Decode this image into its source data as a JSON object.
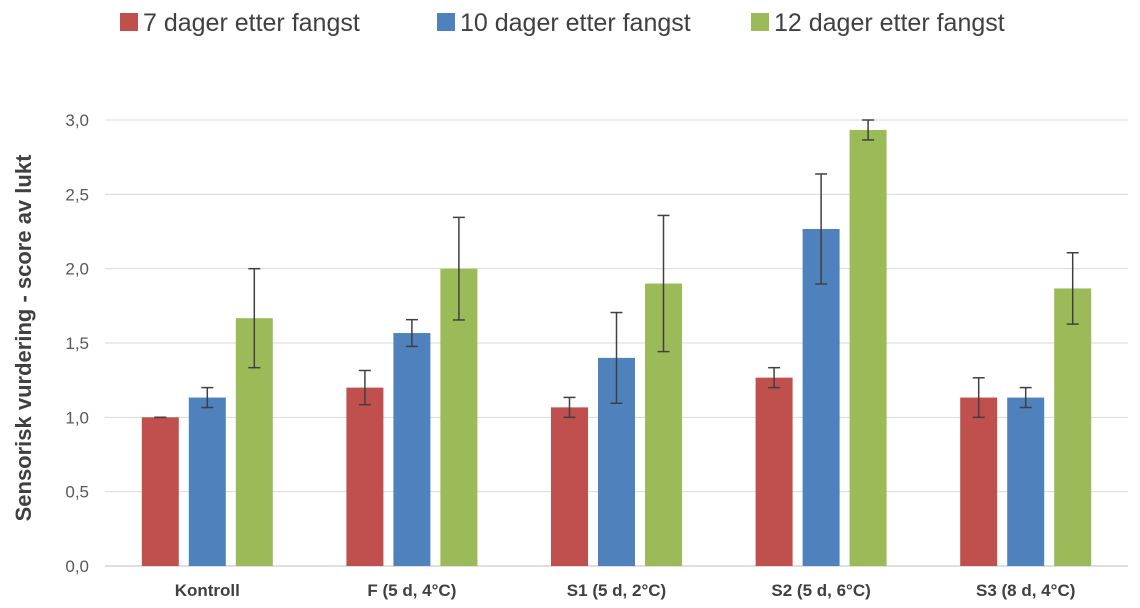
{
  "chart_data": {
    "type": "bar",
    "title": "",
    "xlabel": "",
    "ylabel": "Sensorisk vurdering - score av lukt",
    "ylim": [
      0,
      3.0
    ],
    "yticks": [
      "0,0",
      "0,5",
      "1,0",
      "1,5",
      "2,0",
      "2,5",
      "3,0"
    ],
    "ytick_values": [
      0,
      0.5,
      1.0,
      1.5,
      2.0,
      2.5,
      3.0
    ],
    "grid": true,
    "legend_position": "top",
    "categories": [
      "Kontroll",
      "F (5 d, 4°C)",
      "S1 (5 d, 2°C)",
      "S2 (5 d, 6°C)",
      "S3 (8 d, 4°C)"
    ],
    "series": [
      {
        "name": "7 dager etter fangst",
        "color": "#c0504d",
        "values": [
          1.0,
          1.2,
          1.067,
          1.267,
          1.133
        ],
        "errors": [
          0.0,
          0.115,
          0.067,
          0.067,
          0.133
        ]
      },
      {
        "name": "10 dager etter fangst",
        "color": "#4f81bd",
        "values": [
          1.133,
          1.567,
          1.4,
          2.267,
          1.133
        ],
        "errors": [
          0.067,
          0.09,
          0.305,
          0.37,
          0.067
        ]
      },
      {
        "name": "12 dager etter fangst",
        "color": "#9bbb59",
        "values": [
          1.667,
          2.0,
          1.9,
          2.933,
          1.867
        ],
        "errors": [
          0.333,
          0.345,
          0.458,
          0.067,
          0.24
        ]
      }
    ]
  }
}
